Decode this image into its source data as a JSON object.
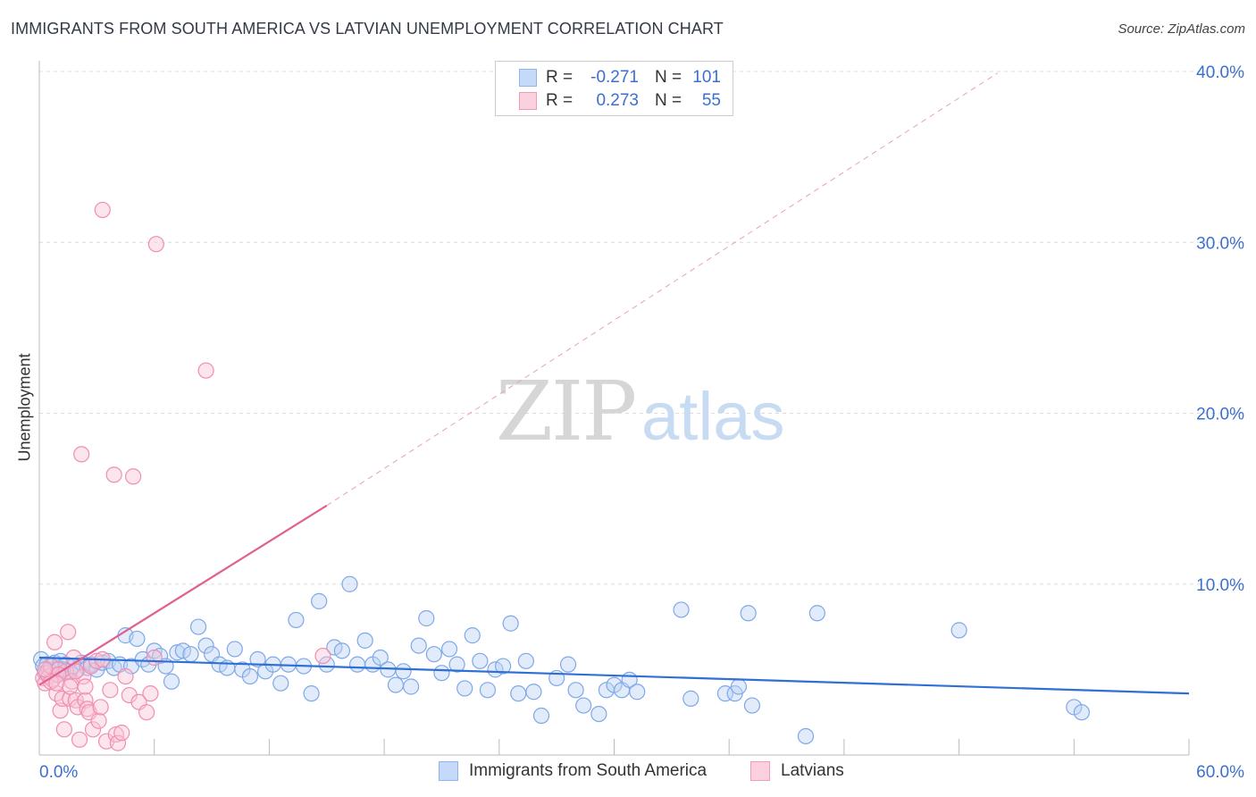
{
  "title": "IMMIGRANTS FROM SOUTH AMERICA VS LATVIAN UNEMPLOYMENT CORRELATION CHART",
  "source": "Source: ZipAtlas.com",
  "watermark": {
    "zip": "ZIP",
    "atlas": "atlas"
  },
  "legend": {
    "rows": [
      {
        "r_label": "R =",
        "r_value": "-0.271",
        "n_label": "N =",
        "n_value": "101",
        "color": "#8fb4ef",
        "fill": "#c5daf8"
      },
      {
        "r_label": "R =",
        "r_value": "0.273",
        "n_label": "N =",
        "n_value": "55",
        "color": "#f39ab8",
        "fill": "#fbd0df"
      }
    ]
  },
  "bottom_legend": [
    {
      "label": "Immigrants from South America",
      "color": "#8fb4ef",
      "fill": "#c5daf8"
    },
    {
      "label": "Latvians",
      "color": "#f39ab8",
      "fill": "#fbd0df"
    }
  ],
  "chart_data": {
    "type": "scatter",
    "title": "IMMIGRANTS FROM SOUTH AMERICA VS LATVIAN UNEMPLOYMENT CORRELATION CHART",
    "xlabel": "",
    "ylabel": "Unemployment",
    "xlim": [
      0,
      60
    ],
    "ylim": [
      0,
      40
    ],
    "x_tick_labels": {
      "left": "0.0%",
      "right": "60.0%"
    },
    "y_ticks": [
      {
        "value": 10,
        "label": "10.0%"
      },
      {
        "value": 20,
        "label": "20.0%"
      },
      {
        "value": 30,
        "label": "30.0%"
      },
      {
        "value": 40,
        "label": "40.0%"
      }
    ],
    "series": [
      {
        "name": "Immigrants from South America",
        "color": "#3f7fdc",
        "trend": {
          "x0": 0,
          "y0": 5.7,
          "x1": 60,
          "y1": 3.6
        },
        "points": [
          [
            0.1,
            5.6
          ],
          [
            0.2,
            5.2
          ],
          [
            0.3,
            4.8
          ],
          [
            0.4,
            5.3
          ],
          [
            0.5,
            5.0
          ],
          [
            0.6,
            4.9
          ],
          [
            0.8,
            5.4
          ],
          [
            0.9,
            4.7
          ],
          [
            1.0,
            5.1
          ],
          [
            1.1,
            5.5
          ],
          [
            1.3,
            5.0
          ],
          [
            1.4,
            5.3
          ],
          [
            1.6,
            4.9
          ],
          [
            1.8,
            5.2
          ],
          [
            2.0,
            5.0
          ],
          [
            2.2,
            5.4
          ],
          [
            2.5,
            5.1
          ],
          [
            2.7,
            5.3
          ],
          [
            3.0,
            5.0
          ],
          [
            3.3,
            5.4
          ],
          [
            3.6,
            5.5
          ],
          [
            3.9,
            5.1
          ],
          [
            4.2,
            5.3
          ],
          [
            4.5,
            7.0
          ],
          [
            4.8,
            5.2
          ],
          [
            5.1,
            6.8
          ],
          [
            5.4,
            5.6
          ],
          [
            5.7,
            5.3
          ],
          [
            6.0,
            6.1
          ],
          [
            6.3,
            5.8
          ],
          [
            6.6,
            5.2
          ],
          [
            6.9,
            4.3
          ],
          [
            7.2,
            6.0
          ],
          [
            7.5,
            6.1
          ],
          [
            7.9,
            5.9
          ],
          [
            8.3,
            7.5
          ],
          [
            8.7,
            6.4
          ],
          [
            9.0,
            5.9
          ],
          [
            9.4,
            5.3
          ],
          [
            9.8,
            5.1
          ],
          [
            10.2,
            6.2
          ],
          [
            10.6,
            5.0
          ],
          [
            11.0,
            4.6
          ],
          [
            11.4,
            5.6
          ],
          [
            11.8,
            4.9
          ],
          [
            12.2,
            5.3
          ],
          [
            12.6,
            4.2
          ],
          [
            13.0,
            5.3
          ],
          [
            13.4,
            7.9
          ],
          [
            13.8,
            5.2
          ],
          [
            14.2,
            3.6
          ],
          [
            14.6,
            9.0
          ],
          [
            15.0,
            5.3
          ],
          [
            15.4,
            6.3
          ],
          [
            15.8,
            6.1
          ],
          [
            16.2,
            10.0
          ],
          [
            16.6,
            5.3
          ],
          [
            17.0,
            6.7
          ],
          [
            17.4,
            5.3
          ],
          [
            17.8,
            5.7
          ],
          [
            18.2,
            5.0
          ],
          [
            18.6,
            4.1
          ],
          [
            19.0,
            4.9
          ],
          [
            19.4,
            4.0
          ],
          [
            19.8,
            6.4
          ],
          [
            20.2,
            8.0
          ],
          [
            20.6,
            5.9
          ],
          [
            21.0,
            4.8
          ],
          [
            21.4,
            6.2
          ],
          [
            21.8,
            5.3
          ],
          [
            22.2,
            3.9
          ],
          [
            22.6,
            7.0
          ],
          [
            23.0,
            5.5
          ],
          [
            23.4,
            3.8
          ],
          [
            23.8,
            5.0
          ],
          [
            24.2,
            5.2
          ],
          [
            24.6,
            7.7
          ],
          [
            25.0,
            3.6
          ],
          [
            25.4,
            5.5
          ],
          [
            25.8,
            3.7
          ],
          [
            26.2,
            2.3
          ],
          [
            27.0,
            4.5
          ],
          [
            27.6,
            5.3
          ],
          [
            28.0,
            3.8
          ],
          [
            28.4,
            2.9
          ],
          [
            29.2,
            2.4
          ],
          [
            29.6,
            3.8
          ],
          [
            30.0,
            4.1
          ],
          [
            30.4,
            3.8
          ],
          [
            30.8,
            4.4
          ],
          [
            31.2,
            3.7
          ],
          [
            33.5,
            8.5
          ],
          [
            34.0,
            3.3
          ],
          [
            35.8,
            3.6
          ],
          [
            36.3,
            3.6
          ],
          [
            36.5,
            4.0
          ],
          [
            37.0,
            8.3
          ],
          [
            37.2,
            2.9
          ],
          [
            40.0,
            1.1
          ],
          [
            40.6,
            8.3
          ],
          [
            48.0,
            7.3
          ],
          [
            54.0,
            2.8
          ],
          [
            54.4,
            2.5
          ]
        ]
      },
      {
        "name": "Latvians",
        "color": "#e66a98",
        "trend": {
          "x0": 0,
          "y0": 4.1,
          "x1": 15,
          "y1": 14.6,
          "dash_to": {
            "x": 50,
            "y": 39.9
          }
        },
        "points": [
          [
            0.2,
            4.5
          ],
          [
            0.3,
            4.2
          ],
          [
            0.4,
            4.8
          ],
          [
            0.5,
            4.6
          ],
          [
            0.6,
            5.2
          ],
          [
            0.7,
            4.4
          ],
          [
            0.8,
            6.6
          ],
          [
            0.9,
            3.6
          ],
          [
            1.0,
            5.0
          ],
          [
            1.1,
            2.6
          ],
          [
            1.2,
            3.3
          ],
          [
            1.3,
            1.5
          ],
          [
            1.4,
            4.9
          ],
          [
            1.5,
            7.2
          ],
          [
            1.6,
            3.3
          ],
          [
            1.7,
            4.3
          ],
          [
            1.8,
            5.7
          ],
          [
            1.9,
            3.2
          ],
          [
            2.0,
            2.8
          ],
          [
            2.1,
            0.9
          ],
          [
            2.2,
            17.6
          ],
          [
            2.3,
            4.6
          ],
          [
            2.4,
            3.2
          ],
          [
            2.5,
            2.7
          ],
          [
            2.6,
            2.5
          ],
          [
            2.7,
            5.2
          ],
          [
            2.8,
            1.5
          ],
          [
            3.0,
            5.5
          ],
          [
            3.1,
            2.0
          ],
          [
            3.2,
            2.8
          ],
          [
            3.3,
            5.6
          ],
          [
            3.5,
            0.8
          ],
          [
            3.7,
            3.8
          ],
          [
            3.9,
            16.4
          ],
          [
            4.0,
            1.2
          ],
          [
            4.1,
            0.7
          ],
          [
            4.3,
            1.3
          ],
          [
            4.5,
            4.6
          ],
          [
            4.7,
            3.5
          ],
          [
            4.9,
            16.3
          ],
          [
            5.2,
            3.1
          ],
          [
            5.6,
            2.5
          ],
          [
            5.8,
            3.6
          ],
          [
            6.0,
            5.7
          ],
          [
            6.1,
            29.9
          ],
          [
            3.3,
            31.9
          ],
          [
            8.7,
            22.5
          ],
          [
            14.8,
            5.8
          ],
          [
            1.0,
            4.7
          ],
          [
            0.6,
            4.3
          ],
          [
            1.9,
            4.9
          ],
          [
            2.4,
            4.0
          ],
          [
            0.3,
            5.0
          ],
          [
            0.9,
            4.2
          ],
          [
            1.6,
            4.0
          ]
        ]
      }
    ]
  }
}
